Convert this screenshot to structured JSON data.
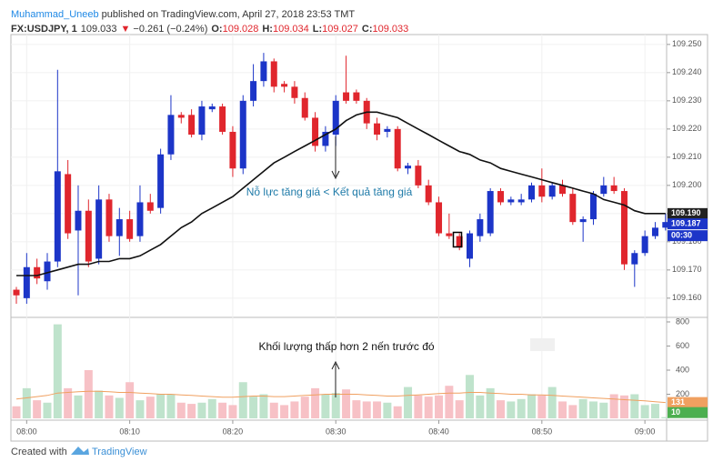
{
  "header": {
    "author": "Muhammad_Uneeb",
    "published": " published on TradingView.com, April 27, 2018 23:53 TMT",
    "symbol": "FX:USDJPY, 1",
    "price": "109.033",
    "arrow": "▼",
    "change": "−0.261 (−0.24%)",
    "o_label": "O:",
    "o": "109.028",
    "h_label": "H:",
    "h": "109.034",
    "l_label": "L:",
    "l": "109.027",
    "c_label": "C:",
    "c": "109.033"
  },
  "footer": {
    "created": "Created with",
    "brand": "TradingView"
  },
  "chart_data": {
    "type": "candlestick",
    "categories": [
      null,
      "08:00",
      null,
      null,
      null,
      null,
      null,
      null,
      null,
      null,
      null,
      "08:10",
      null,
      null,
      null,
      null,
      null,
      null,
      null,
      null,
      null,
      "08:20",
      null,
      null,
      null,
      null,
      null,
      null,
      null,
      null,
      null,
      "08:30",
      null,
      null,
      null,
      null,
      null,
      null,
      null,
      null,
      null,
      "08:40",
      null,
      null,
      null,
      null,
      null,
      null,
      null,
      null,
      null,
      "08:50",
      null,
      null,
      null,
      null,
      null,
      null,
      null,
      null,
      null,
      "09:00",
      null,
      null
    ],
    "open": [
      109.163,
      109.16,
      109.171,
      109.166,
      109.173,
      109.204,
      109.184,
      109.191,
      109.174,
      109.195,
      109.182,
      109.188,
      109.182,
      109.194,
      109.192,
      109.211,
      109.225,
      109.225,
      109.218,
      109.227,
      109.228,
      109.219,
      109.206,
      109.23,
      109.237,
      109.244,
      109.236,
      109.235,
      109.231,
      109.224,
      109.214,
      109.218,
      109.233,
      109.233,
      109.23,
      109.222,
      109.219,
      109.22,
      109.206,
      109.207,
      109.2,
      109.194,
      109.183,
      109.182,
      109.174,
      109.182,
      109.183,
      109.198,
      109.194,
      109.194,
      109.195,
      109.2,
      109.196,
      109.2,
      109.197,
      109.187,
      109.188,
      109.197,
      109.2,
      109.198,
      109.172,
      109.176,
      109.182,
      109.185
    ],
    "high": [
      109.164,
      109.176,
      109.174,
      109.176,
      109.241,
      109.209,
      109.2,
      109.195,
      109.2,
      109.197,
      109.192,
      109.191,
      109.2,
      109.197,
      109.213,
      109.232,
      109.226,
      109.227,
      109.23,
      109.229,
      109.229,
      109.221,
      109.232,
      109.243,
      109.247,
      109.245,
      109.237,
      109.237,
      109.233,
      109.226,
      109.221,
      109.232,
      109.246,
      109.234,
      109.231,
      109.224,
      109.221,
      109.221,
      109.208,
      109.209,
      109.202,
      109.196,
      109.19,
      109.183,
      109.184,
      109.19,
      109.199,
      109.199,
      109.196,
      109.197,
      109.201,
      109.206,
      109.201,
      109.202,
      109.199,
      109.189,
      109.198,
      109.203,
      109.203,
      109.199,
      109.177,
      109.184,
      109.187,
      109.19
    ],
    "low": [
      109.158,
      109.158,
      109.165,
      109.163,
      109.171,
      109.181,
      109.161,
      109.171,
      109.172,
      109.18,
      109.175,
      109.18,
      109.18,
      109.19,
      109.19,
      109.209,
      109.222,
      109.217,
      109.216,
      109.226,
      109.218,
      109.203,
      109.204,
      109.228,
      109.235,
      109.233,
      109.233,
      109.229,
      109.223,
      109.212,
      109.212,
      109.214,
      109.229,
      109.229,
      109.22,
      109.216,
      109.217,
      109.205,
      109.204,
      109.199,
      109.193,
      109.182,
      109.181,
      109.177,
      109.171,
      109.18,
      109.182,
      109.193,
      109.193,
      109.193,
      109.194,
      109.194,
      109.195,
      109.196,
      109.186,
      109.18,
      109.186,
      109.196,
      109.197,
      109.17,
      109.164,
      109.175,
      109.181,
      109.184
    ],
    "close": [
      109.161,
      109.171,
      109.167,
      109.173,
      109.205,
      109.183,
      109.191,
      109.173,
      109.195,
      109.182,
      109.188,
      109.181,
      109.194,
      109.191,
      109.211,
      109.225,
      109.224,
      109.218,
      109.228,
      109.228,
      109.219,
      109.206,
      109.23,
      109.237,
      109.244,
      109.235,
      109.235,
      109.231,
      109.224,
      109.214,
      109.219,
      109.23,
      109.23,
      109.23,
      109.222,
      109.218,
      109.22,
      109.206,
      109.207,
      109.2,
      109.194,
      109.183,
      109.182,
      109.178,
      109.183,
      109.188,
      109.198,
      109.194,
      109.195,
      109.195,
      109.2,
      109.196,
      109.2,
      109.197,
      109.187,
      109.188,
      109.197,
      109.2,
      109.198,
      109.172,
      109.176,
      109.182,
      109.185,
      109.187
    ],
    "ma": [
      109.168,
      109.168,
      109.168,
      109.169,
      109.17,
      109.171,
      109.172,
      109.172,
      109.173,
      109.173,
      109.174,
      109.174,
      109.175,
      109.177,
      109.179,
      109.182,
      109.185,
      109.187,
      109.19,
      109.192,
      109.194,
      109.196,
      109.199,
      109.202,
      109.205,
      109.208,
      109.21,
      109.212,
      109.214,
      109.216,
      109.218,
      109.22,
      109.223,
      109.225,
      109.226,
      109.226,
      109.225,
      109.224,
      109.222,
      109.22,
      109.218,
      109.216,
      109.214,
      109.212,
      109.211,
      109.209,
      109.208,
      109.206,
      109.205,
      109.204,
      109.203,
      109.202,
      109.201,
      109.2,
      109.199,
      109.198,
      109.197,
      109.195,
      109.194,
      109.193,
      109.191,
      109.19,
      109.19,
      109.19
    ],
    "volume": [
      100,
      250,
      150,
      130,
      780,
      250,
      190,
      400,
      230,
      190,
      170,
      300,
      150,
      180,
      200,
      200,
      130,
      120,
      130,
      160,
      130,
      110,
      300,
      180,
      200,
      130,
      110,
      140,
      180,
      250,
      200,
      210,
      240,
      150,
      140,
      140,
      130,
      100,
      260,
      190,
      180,
      190,
      270,
      150,
      360,
      190,
      250,
      150,
      140,
      160,
      200,
      190,
      260,
      140,
      110,
      160,
      140,
      130,
      200,
      190,
      200,
      110,
      120,
      10
    ],
    "volume_ma": [
      160,
      170,
      180,
      190,
      210,
      215,
      220,
      225,
      225,
      220,
      215,
      215,
      210,
      205,
      200,
      200,
      195,
      190,
      185,
      180,
      175,
      175,
      180,
      185,
      185,
      180,
      180,
      185,
      190,
      195,
      200,
      200,
      200,
      200,
      195,
      190,
      185,
      185,
      190,
      195,
      200,
      205,
      210,
      210,
      215,
      215,
      210,
      205,
      200,
      200,
      195,
      195,
      190,
      185,
      180,
      175,
      170,
      165,
      160,
      155,
      150,
      145,
      138,
      131
    ],
    "last_labels": {
      "ma": "109.190",
      "close": "109.187",
      "volume": "10",
      "volume_ma": "131",
      "countdown": "00:30"
    },
    "ylim": [
      109.1535,
      109.2535
    ],
    "yticks": [
      {
        "value": 109.16,
        "label": "109.160"
      },
      {
        "value": 109.17,
        "label": "109.170"
      },
      {
        "value": 109.18,
        "label": "109.180"
      },
      {
        "value": 109.19,
        "label": "109.190"
      },
      {
        "value": 109.2,
        "label": "109.200"
      },
      {
        "value": 109.21,
        "label": "109.210"
      },
      {
        "value": 109.22,
        "label": "109.220"
      },
      {
        "value": 109.23,
        "label": "109.230"
      },
      {
        "value": 109.24,
        "label": "109.240"
      },
      {
        "value": 109.25,
        "label": "109.250"
      }
    ],
    "vlim": [
      0,
      830
    ],
    "vticks": [
      200,
      400,
      600,
      800
    ],
    "colors": {
      "up": "#1c35c8",
      "down": "#e0262d",
      "ma": "#111111",
      "volume_up": "#bfe3cc",
      "volume_down": "#f7c1c6",
      "volume_ma": "#f0a060"
    },
    "grid": true,
    "annotations": [
      "Nỗ lực tăng giá < Kết quả tăng giá",
      "Khối lượng thấp hơn 2 nến trước đó"
    ]
  }
}
